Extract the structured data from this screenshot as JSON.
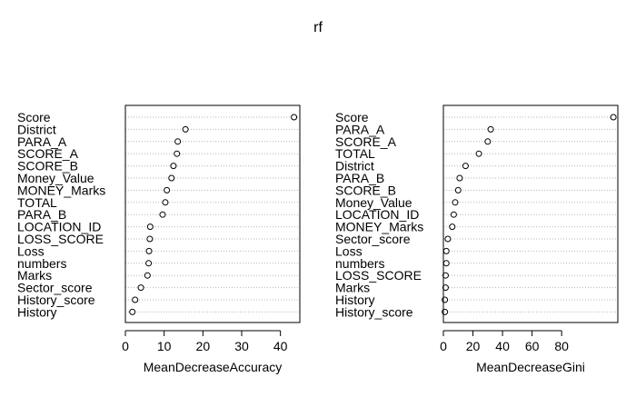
{
  "title": "rf",
  "chart_data": [
    {
      "type": "scatter",
      "subtype": "dotchart",
      "xlabel": "MeanDecreaseAccuracy",
      "xlim": [
        0,
        45
      ],
      "xticks": [
        0,
        10,
        20,
        30,
        40
      ],
      "grid": "dotted horizontal",
      "categories": [
        "Score",
        "District",
        "PARA_A",
        "SCORE_A",
        "SCORE_B",
        "Money_Value",
        "MONEY_Marks",
        "TOTAL",
        "PARA_B",
        "LOCATION_ID",
        "LOSS_SCORE",
        "Loss",
        "numbers",
        "Marks",
        "Sector_score",
        "History_score",
        "History"
      ],
      "values": [
        43.5,
        15.5,
        13.5,
        13.3,
        12.4,
        11.9,
        10.7,
        10.3,
        9.6,
        6.4,
        6.3,
        6.1,
        6.0,
        5.7,
        4.0,
        2.5,
        1.8
      ]
    },
    {
      "type": "scatter",
      "subtype": "dotchart",
      "xlabel": "MeanDecreaseGini",
      "xlim": [
        0,
        118
      ],
      "xticks": [
        0,
        20,
        40,
        60,
        80
      ],
      "grid": "dotted horizontal",
      "categories": [
        "Score",
        "PARA_A",
        "SCORE_A",
        "TOTAL",
        "District",
        "PARA_B",
        "SCORE_B",
        "Money_Value",
        "LOCATION_ID",
        "MONEY_Marks",
        "Sector_score",
        "Loss",
        "numbers",
        "LOSS_SCORE",
        "Marks",
        "History",
        "History_score"
      ],
      "values": [
        115,
        32,
        30,
        24,
        15,
        11,
        10,
        8,
        7,
        6,
        3,
        2,
        2,
        1.5,
        1.5,
        1,
        1
      ]
    }
  ]
}
